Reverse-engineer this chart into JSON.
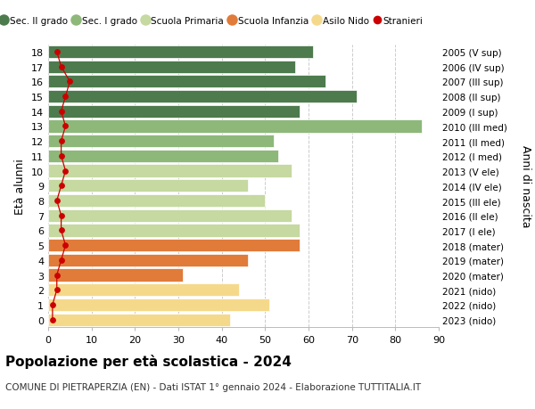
{
  "ages": [
    0,
    1,
    2,
    3,
    4,
    5,
    6,
    7,
    8,
    9,
    10,
    11,
    12,
    13,
    14,
    15,
    16,
    17,
    18
  ],
  "labels_right": [
    "2023 (nido)",
    "2022 (nido)",
    "2021 (nido)",
    "2020 (mater)",
    "2019 (mater)",
    "2018 (mater)",
    "2017 (I ele)",
    "2016 (II ele)",
    "2015 (III ele)",
    "2014 (IV ele)",
    "2013 (V ele)",
    "2012 (I med)",
    "2011 (II med)",
    "2010 (III med)",
    "2009 (I sup)",
    "2008 (II sup)",
    "2007 (III sup)",
    "2006 (IV sup)",
    "2005 (V sup)"
  ],
  "bar_values": [
    42,
    51,
    44,
    31,
    46,
    58,
    58,
    56,
    50,
    46,
    56,
    53,
    52,
    86,
    58,
    71,
    64,
    57,
    61
  ],
  "stranieri_values": [
    1,
    1,
    2,
    2,
    3,
    4,
    3,
    3,
    2,
    3,
    4,
    3,
    3,
    4,
    3,
    4,
    5,
    3,
    2
  ],
  "color_per_age": [
    "#F5D98B",
    "#F5D98B",
    "#F5D98B",
    "#E07B39",
    "#E07B39",
    "#E07B39",
    "#C5D9A0",
    "#C5D9A0",
    "#C5D9A0",
    "#C5D9A0",
    "#C5D9A0",
    "#8DB87A",
    "#8DB87A",
    "#8DB87A",
    "#4D7B4D",
    "#4D7B4D",
    "#4D7B4D",
    "#4D7B4D",
    "#4D7B4D"
  ],
  "stranieri_color": "#CC0000",
  "grid_color": "#CCCCCC",
  "bg_color": "#FFFFFF",
  "title": "Popolazione per età scolastica - 2024",
  "subtitle": "COMUNE DI PIETRAPERZIA (EN) - Dati ISTAT 1° gennaio 2024 - Elaborazione TUTTITALIA.IT",
  "ylabel_left": "Età alunni",
  "ylabel_right": "Anni di nascita",
  "xlim": [
    0,
    90
  ],
  "xticks": [
    0,
    10,
    20,
    30,
    40,
    50,
    60,
    70,
    80,
    90
  ],
  "legend_items": [
    {
      "label": "Sec. II grado",
      "color": "#4D7B4D",
      "type": "circle"
    },
    {
      "label": "Sec. I grado",
      "color": "#8DB87A",
      "type": "circle"
    },
    {
      "label": "Scuola Primaria",
      "color": "#C5D9A0",
      "type": "circle"
    },
    {
      "label": "Scuola Infanzia",
      "color": "#E07B39",
      "type": "circle"
    },
    {
      "label": "Asilo Nido",
      "color": "#F5D98B",
      "type": "circle"
    },
    {
      "label": "Stranieri",
      "color": "#CC0000",
      "type": "dot"
    }
  ]
}
